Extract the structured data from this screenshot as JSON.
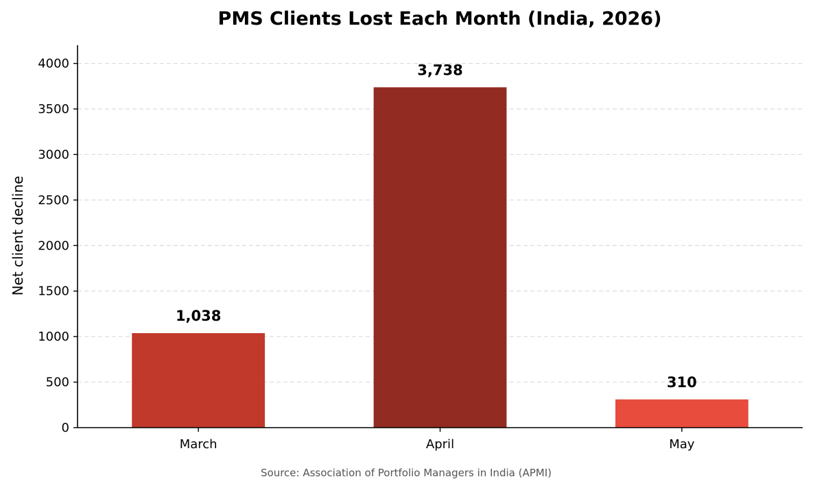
{
  "chart_data": {
    "type": "bar",
    "title": "PMS Clients Lost Each Month (India, 2026)",
    "xlabel": "",
    "ylabel": "Net client decline",
    "categories": [
      "March",
      "April",
      "May"
    ],
    "values": [
      1038,
      3738,
      310
    ],
    "value_labels": [
      "1,038",
      "3,738",
      "310"
    ],
    "bar_colors": [
      "#c0392b",
      "#922b21",
      "#e74c3c"
    ],
    "ylim": [
      0,
      4200
    ],
    "yticks": [
      0,
      500,
      1000,
      1500,
      2000,
      2500,
      3000,
      3500,
      4000
    ],
    "grid": "y-dashed",
    "legend": "none",
    "source": "Source: Association of Portfolio Managers in India (APMI)"
  }
}
